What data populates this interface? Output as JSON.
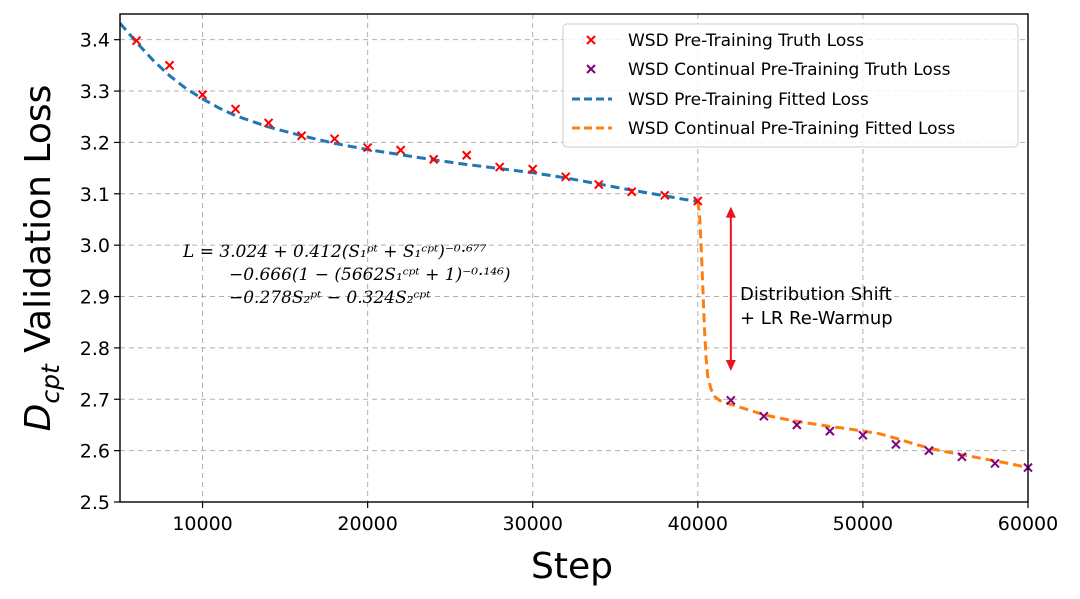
{
  "chart_data": {
    "type": "line",
    "xlabel": "Step",
    "ylabel_main": "D",
    "ylabel_sub": "cpt",
    "ylabel_rest": " Validation Loss",
    "xlim": [
      5000,
      60000
    ],
    "ylim": [
      2.5,
      3.45
    ],
    "xticks": [
      10000,
      20000,
      30000,
      40000,
      50000,
      60000
    ],
    "yticks": [
      2.5,
      2.6,
      2.7,
      2.8,
      2.9,
      3.0,
      3.1,
      3.2,
      3.3,
      3.4
    ],
    "ytick_labels": [
      "2.5",
      "2.6",
      "2.7",
      "2.8",
      "2.9",
      "3.0",
      "3.1",
      "3.2",
      "3.3",
      "3.4"
    ],
    "grid": true,
    "legend_position": "top-right",
    "series": [
      {
        "name": "WSD Pre-Training Truth Loss",
        "kind": "scatter",
        "marker": "x",
        "color": "#ff0000",
        "x": [
          6000,
          8000,
          10000,
          12000,
          14000,
          16000,
          18000,
          20000,
          22000,
          24000,
          26000,
          28000,
          30000,
          32000,
          34000,
          36000,
          38000,
          40000
        ],
        "y": [
          3.398,
          3.35,
          3.293,
          3.265,
          3.238,
          3.213,
          3.207,
          3.19,
          3.185,
          3.167,
          3.175,
          3.152,
          3.148,
          3.133,
          3.118,
          3.104,
          3.097,
          3.086
        ]
      },
      {
        "name": "WSD Continual Pre-Training Truth Loss",
        "kind": "scatter",
        "marker": "x",
        "color": "#800080",
        "x": [
          42000,
          44000,
          46000,
          48000,
          50000,
          52000,
          54000,
          56000,
          58000,
          60000
        ],
        "y": [
          2.698,
          2.667,
          2.65,
          2.638,
          2.63,
          2.612,
          2.6,
          2.588,
          2.575,
          2.567
        ]
      },
      {
        "name": "WSD Pre-Training Fitted Loss",
        "kind": "line",
        "dash": "dashed",
        "color": "#1f77b4",
        "x": [
          5000,
          6000,
          7000,
          8000,
          9000,
          10000,
          11000,
          12000,
          14000,
          16000,
          18000,
          20000,
          22000,
          24000,
          26000,
          28000,
          30000,
          32000,
          34000,
          36000,
          38000,
          39000,
          40000
        ],
        "y": [
          3.432,
          3.395,
          3.36,
          3.33,
          3.305,
          3.285,
          3.267,
          3.252,
          3.23,
          3.213,
          3.198,
          3.186,
          3.176,
          3.166,
          3.157,
          3.149,
          3.141,
          3.131,
          3.119,
          3.107,
          3.096,
          3.09,
          3.085
        ]
      },
      {
        "name": "WSD Continual Pre-Training Fitted Loss",
        "kind": "line",
        "dash": "dashed",
        "color": "#ff7f0e",
        "x": [
          40000,
          40100,
          40200,
          40300,
          40400,
          40500,
          40600,
          40800,
          41000,
          41300,
          41600,
          42000,
          43000,
          44000,
          45000,
          46000,
          47000,
          48000,
          49000,
          50000,
          51000,
          52000,
          53000,
          54000,
          55000,
          56000,
          57000,
          58000,
          59000,
          60000
        ],
        "y": [
          3.085,
          3.06,
          3.0,
          2.92,
          2.84,
          2.78,
          2.745,
          2.72,
          2.706,
          2.698,
          2.694,
          2.69,
          2.68,
          2.67,
          2.663,
          2.657,
          2.652,
          2.647,
          2.643,
          2.638,
          2.633,
          2.624,
          2.614,
          2.605,
          2.598,
          2.592,
          2.586,
          2.58,
          2.574,
          2.567
        ]
      }
    ],
    "annotations": {
      "arrow": {
        "x": 42000,
        "y_from": 2.755,
        "y_to": 3.075,
        "color": "#e8141e"
      },
      "shift_label": [
        "Distribution Shift",
        "+ LR Re-Warmup"
      ],
      "equation": [
        "L = 3.024 + 0.412(S₁ᵖᵗ + S₁ᶜᵖᵗ)⁻⁰·⁶⁷⁷",
        "−0.666(1 − (5662S₁ᶜᵖᵗ + 1)⁻⁰·¹⁴⁶)",
        "−0.278S₂ᵖᵗ − 0.324S₂ᶜᵖᵗ"
      ]
    }
  }
}
